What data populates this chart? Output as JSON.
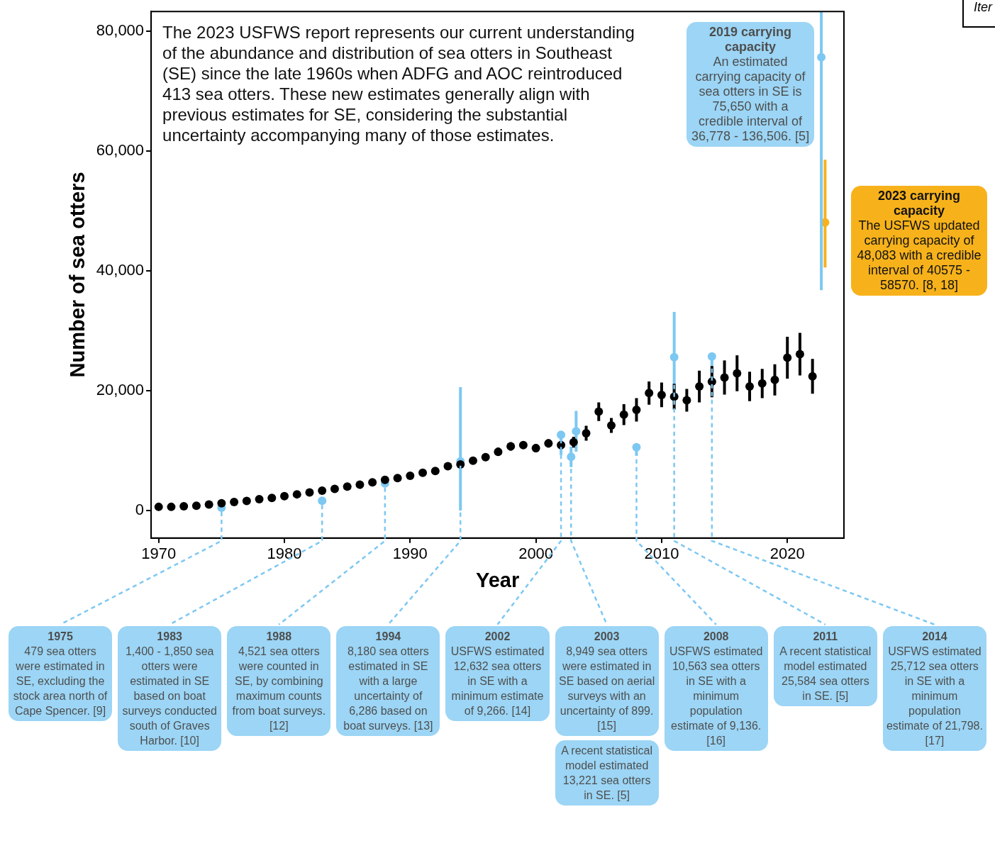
{
  "chart_data": {
    "type": "scatter",
    "xlabel": "Year",
    "ylabel": "Number of sea otters",
    "xlim": [
      1969.4,
      2024.5
    ],
    "xticks": [
      1970,
      1980,
      1990,
      2000,
      2010,
      2020
    ],
    "ylim": [
      -4600,
      83300
    ],
    "yticks": [
      0,
      {
        "value": 20000,
        "label": "20,000"
      },
      {
        "value": 40000,
        "label": "40,000"
      },
      {
        "value": 60000,
        "label": "60,000"
      },
      {
        "value": 80000,
        "label": "80,000"
      }
    ],
    "grid": false,
    "legend": false,
    "marker": "circle",
    "series": [
      {
        "color": "#000000",
        "x": [
          1970,
          1971,
          1972,
          1973,
          1974,
          1975,
          1976,
          1977,
          1978,
          1979,
          1980,
          1981,
          1982,
          1983,
          1984,
          1985,
          1986,
          1987,
          1988,
          1989,
          1990,
          1991,
          1992,
          1993,
          1994,
          1995,
          1996,
          1997,
          1998,
          1999,
          2000,
          2001,
          2002,
          2003,
          2004,
          2005,
          2006,
          2007,
          2008,
          2009,
          2010,
          2011,
          2012,
          2013,
          2014,
          2015,
          2016,
          2017,
          2018,
          2019,
          2020,
          2021,
          2022
        ],
        "values": [
          600,
          600,
          700,
          800,
          1000,
          1200,
          1400,
          1600,
          1900,
          2100,
          2400,
          2700,
          3000,
          3300,
          3600,
          4000,
          4300,
          4700,
          5100,
          5400,
          5800,
          6300,
          6600,
          7400,
          7700,
          8300,
          8900,
          9800,
          10700,
          10900,
          10400,
          11200,
          10900,
          11400,
          12900,
          16500,
          14200,
          16000,
          16800,
          19600,
          19300,
          19000,
          18400,
          20700,
          21500,
          22200,
          22900,
          20700,
          21200,
          21800,
          25500,
          26100,
          22400
        ],
        "errors": [
          null,
          null,
          null,
          null,
          null,
          null,
          null,
          null,
          null,
          null,
          null,
          null,
          null,
          null,
          null,
          null,
          null,
          null,
          null,
          null,
          null,
          null,
          null,
          null,
          null,
          300,
          500,
          700,
          700,
          600,
          700,
          700,
          600,
          900,
          1250,
          1550,
          1250,
          1750,
          1950,
          1950,
          2050,
          2150,
          1900,
          2650,
          2600,
          2850,
          3000,
          2450,
          2450,
          2600,
          3500,
          3550,
          2900
        ]
      },
      {
        "color": "#7cc8f2",
        "x": [
          1975,
          1983,
          1988,
          1994,
          2002,
          2002.8,
          2003.2,
          2008,
          2011,
          2014,
          2022.7
        ],
        "values": [
          479,
          1625,
          4521,
          8180,
          12632,
          8949,
          13221,
          10563,
          25584,
          25712,
          75650
        ],
        "errors": [
          null,
          null,
          null,
          [
            0,
            20600
          ],
          [
            9266,
            12632
          ],
          1700,
          3400,
          [
            9136,
            10563
          ],
          [
            18700,
            33150
          ],
          [
            21798,
            25712
          ],
          [
            36778,
            83300
          ]
        ]
      },
      {
        "color": "#f7b21b",
        "x": [
          2023
        ],
        "values": [
          48083
        ],
        "errors": [
          [
            40575,
            58570
          ]
        ]
      }
    ],
    "annotations": [
      "The 2023 USFWS report represents our current understanding of the abundance and distribution of sea otters in Southeast (SE) since the late 1960s when ADFG and AOC reintroduced 413 sea otters. These new estimates generally align with previous estimates for SE, considering the substantial uncertainty accompanying many of those estimates.",
      "Iter",
      {
        "text": "1975\n479 sea otters were estimated in SE, excluding the stock area north of Cape Spencer. [9]",
        "x": 1975,
        "y": 479
      },
      {
        "text": "1983\n1,400 - 1,850 sea otters were estimated in SE based on boat surveys conducted south of Graves Harbor. [10]",
        "x": 1983,
        "y": 1625
      },
      {
        "text": "1988\n4,521 sea otters were counted in SE, by combining maximum counts from boat surveys. [12]",
        "x": 1988,
        "y": 4521
      },
      {
        "text": "1994\n8,180 sea otters estimated in SE with a large uncertainty of 6,286 based on boat surveys. [13]",
        "x": 1994,
        "y": 8180
      },
      {
        "text": "2002\nUSFWS estimated 12,632 sea otters in SE with a minimum estimate of 9,266. [14]",
        "x": 2002,
        "y": 12632
      },
      {
        "text": "2003\n8,949 sea otters were estimated in SE based on aerial surveys with an uncertainty of 899. [15]",
        "x": 2002.8,
        "y": 8949
      },
      "A recent statistical model estimated 13,221 sea otters  in SE. [5]",
      {
        "text": "2008\nUSFWS estimated 10,563 sea otters in SE with a minimum population estimate of 9,136. [16]",
        "x": 2008,
        "y": 10563
      },
      {
        "text": "2011\nA recent statistical model estimated 25,584 sea otters in SE. [5]",
        "x": 2011,
        "y": 25584
      },
      {
        "text": "2014\nUSFWS estimated 25,712 sea otters in SE with a minimum population estimate of 21,798. [17]",
        "x": 2014,
        "y": 25712
      },
      {
        "text": "2019 carrying capacity\nAn estimated carrying capacity of sea otters in SE is 75,650 with a credible interval of 36,778 - 136,506. [5]",
        "x": 2022.7,
        "y": 75650
      },
      {
        "text": "2023 carrying capacity\nThe USFWS updated carrying capacity of 48,083 with a credible interval of 40575 - 58570. [8, 18]",
        "x": 2023,
        "y": 48083
      }
    ]
  }
}
